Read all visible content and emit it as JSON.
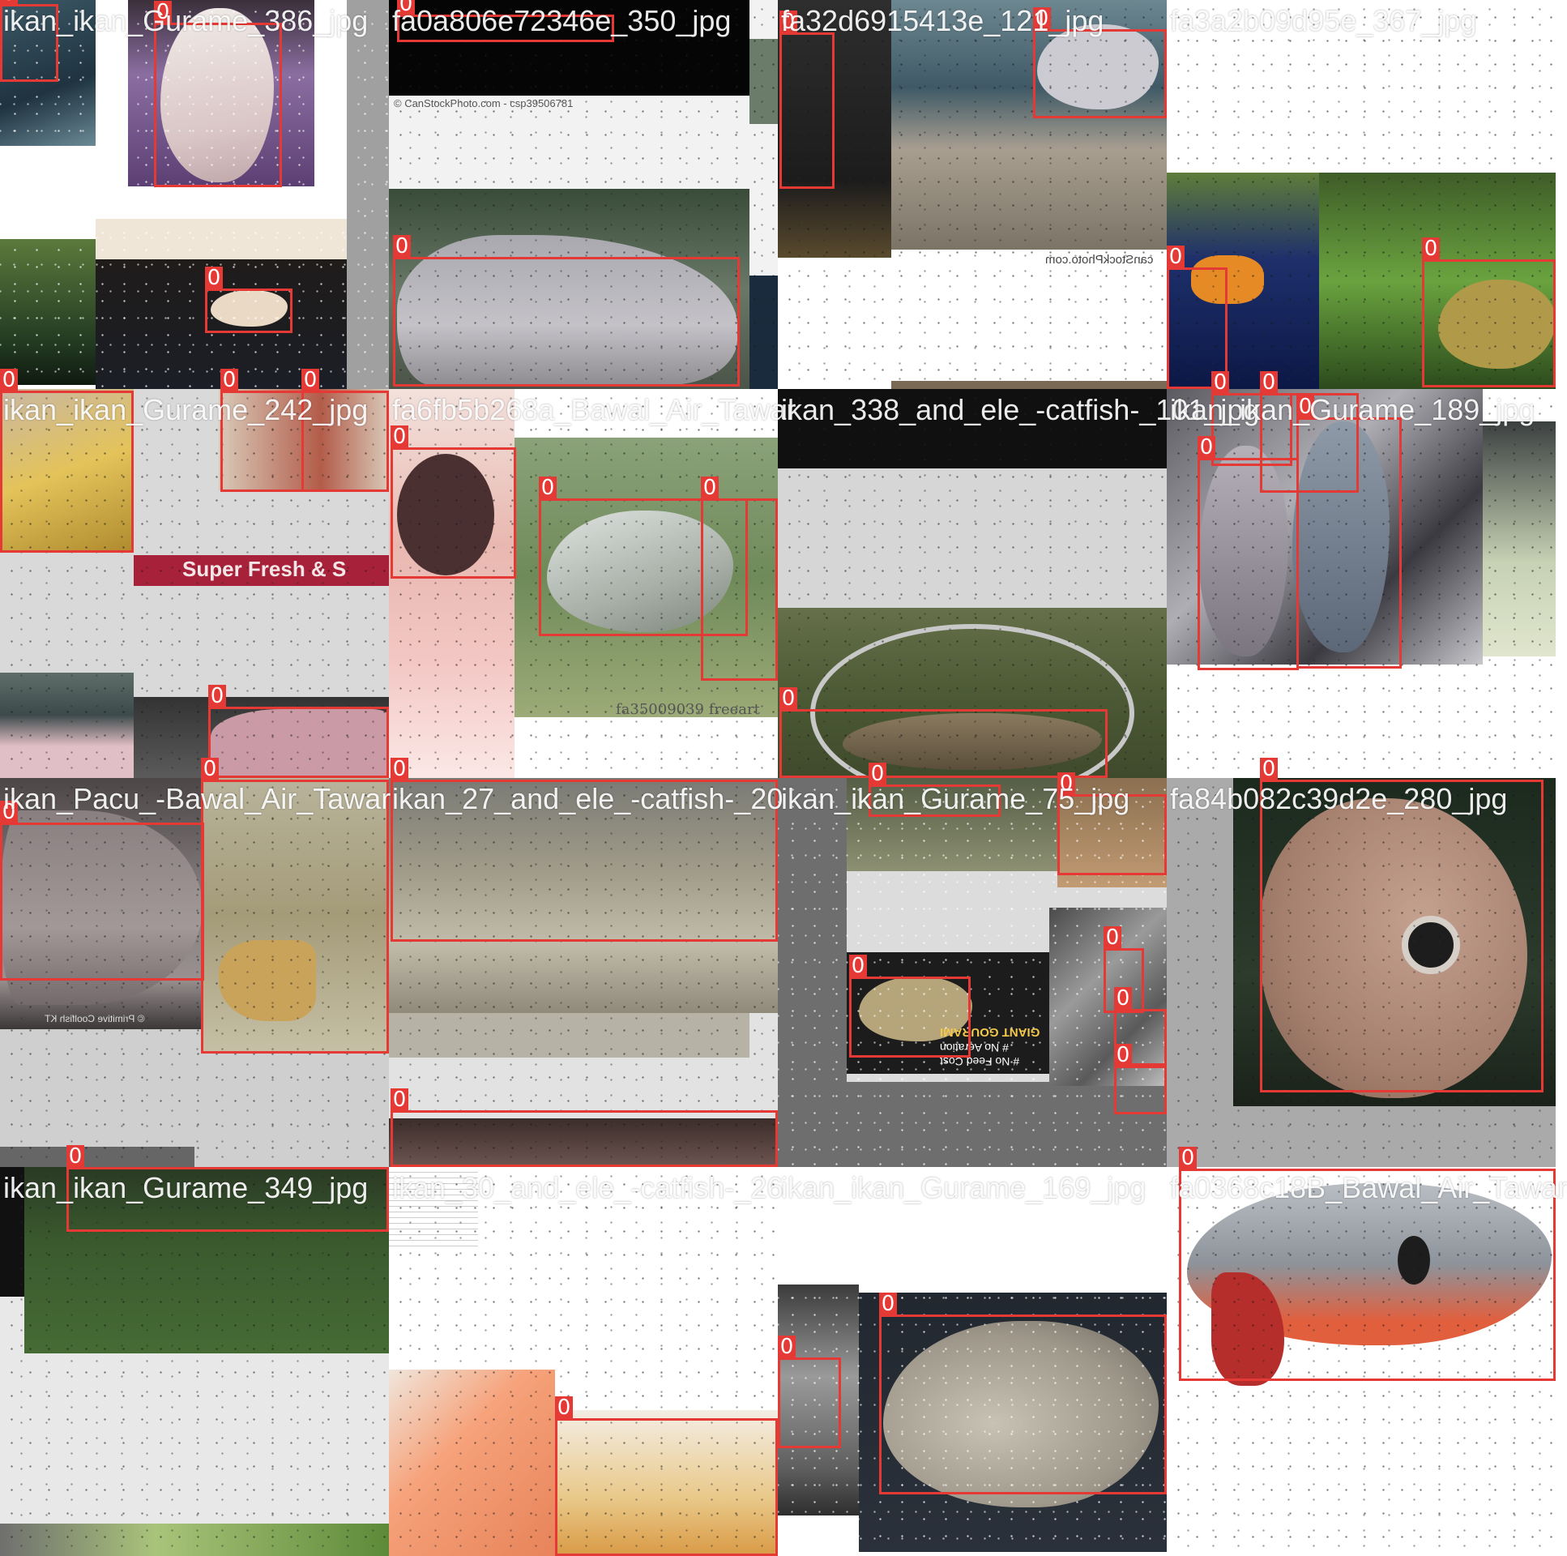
{
  "mosaic": {
    "bbox_class_label": "0",
    "bbox_color": "#e53935",
    "tiles": [
      {
        "title": "ikan_ikan_Gurame_386_jpg",
        "bg": "#ffffff"
      },
      {
        "title": "fa0a806e72346e_350_jpg",
        "bg": "#f2f2f2"
      },
      {
        "title": "fa32d6915413e_121_jpg",
        "bg": "#ffffff"
      },
      {
        "title": "fa3a2b09d95e_367_jpg",
        "bg": "#ffffff"
      },
      {
        "title": "ikan_ikan_Gurame_242_jpg",
        "bg": "#d9d9d9"
      },
      {
        "title": "fa6fb5b268a_Bawal_Air_Tawar",
        "bg": "#ffffff"
      },
      {
        "title": "ikan_338_and_ele_-catfish-_101_jpg",
        "bg": "#d6d6d6"
      },
      {
        "title": "ikan_ikan_Gurame_189_jpg",
        "bg": "#ffffff"
      },
      {
        "title": "ikan_Pacu_-Bawal_Air_Tawar",
        "bg": "#cfcfcf"
      },
      {
        "title": "ikan_27_and_ele_-catfish-_20",
        "bg": "#e2e2e2"
      },
      {
        "title": "ikan_ikan_Gurame_75_jpg",
        "bg": "#6e6e6e"
      },
      {
        "title": "fa84b082c39d2e_280_jpg",
        "bg": "#aaaaaa"
      },
      {
        "title": "ikan_ikan_Gurame_349_jpg",
        "bg": "#e8e8e8"
      },
      {
        "title": "ikan_30_and_ele_-catfish-_26",
        "bg": "#ffffff"
      },
      {
        "title": "ikan_ikan_Gurame_169_jpg",
        "bg": "#ffffff"
      },
      {
        "title": "fa0368c18B_Bawal_Air_Tawar",
        "bg": "#ffffff"
      }
    ],
    "captions": {
      "canstock_top": "© CanStockPhoto.com - csp39506781",
      "canstock_mirror": "canStockPhoto.com",
      "super_fresh": "Super Fresh & S",
      "freeart": "fa35009039 freeart",
      "giant_gourami": "GIANT GOURAMI",
      "no_aeration": "# No Aeration",
      "no_feed": "# No Feed Cost",
      "primitive": "© Primitive Coolfish KT"
    }
  }
}
